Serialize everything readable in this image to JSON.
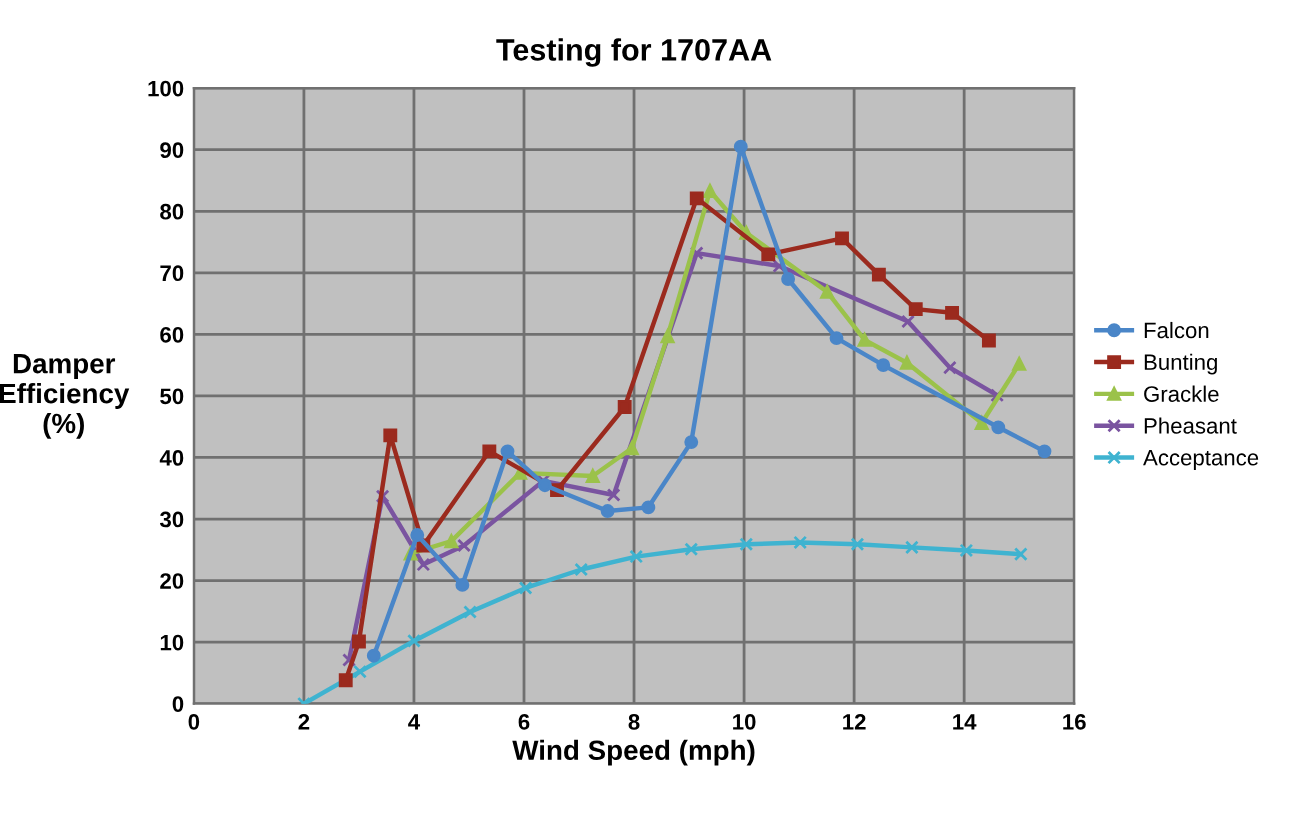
{
  "chart_data": {
    "type": "line",
    "title": "Testing for 1707AA",
    "xlabel": "Wind Speed (mph)",
    "ylabel": "Damper\nEfficiency\n(%)",
    "xlim": [
      0,
      16
    ],
    "xticks": [
      0,
      2,
      4,
      6,
      8,
      10,
      12,
      14,
      16
    ],
    "ylim": [
      0,
      100
    ],
    "yticks": [
      0,
      10,
      20,
      30,
      40,
      50,
      60,
      70,
      80,
      90,
      100
    ],
    "grid": true,
    "legend": "right",
    "series": [
      {
        "name": "Falcon",
        "color": "#4a86c8",
        "marker": "circle",
        "x": [
          3.27,
          4.06,
          4.88,
          5.7,
          6.38,
          7.52,
          8.26,
          9.04,
          9.94,
          10.8,
          11.68,
          12.53,
          14.62,
          15.46
        ],
        "values": [
          7.8,
          27.4,
          19.3,
          41,
          35.5,
          31.3,
          31.9,
          42.5,
          90.5,
          69,
          59.4,
          55,
          44.9,
          41
        ]
      },
      {
        "name": "Bunting",
        "color": "#9b2a1e",
        "marker": "square",
        "x": [
          2.76,
          3.0,
          3.57,
          4.17,
          5.37,
          6.6,
          7.83,
          9.14,
          10.44,
          11.78,
          12.45,
          13.12,
          13.78,
          14.45
        ],
        "values": [
          3.8,
          10.1,
          43.6,
          25.7,
          41,
          34.7,
          48.2,
          82.1,
          73,
          75.6,
          69.7,
          64.1,
          63.5,
          59
        ]
      },
      {
        "name": "Grackle",
        "color": "#9bc24a",
        "marker": "triangle",
        "x": [
          3.94,
          4.68,
          5.93,
          7.25,
          7.96,
          8.61,
          9.38,
          10.04,
          11.51,
          12.19,
          12.96,
          14.32,
          15.0
        ],
        "values": [
          24.4,
          26.4,
          37.5,
          37,
          41.5,
          59.7,
          83.3,
          76.5,
          66.9,
          59.1,
          55.4,
          45.6,
          55.2
        ]
      },
      {
        "name": "Pheasant",
        "color": "#7a54a0",
        "marker": "cross",
        "x": [
          2.82,
          3.43,
          4.17,
          4.91,
          6.35,
          7.63,
          9.14,
          10.64,
          12.98,
          13.74,
          14.6
        ],
        "values": [
          7.1,
          33.7,
          22.6,
          25.7,
          36.2,
          33.9,
          73.2,
          71.1,
          62.1,
          54.6,
          50.1
        ]
      },
      {
        "name": "Acceptance",
        "color": "#3fb3d0",
        "marker": "cross",
        "x": [
          2.0,
          3.02,
          4.0,
          5.02,
          6.03,
          7.04,
          8.04,
          9.04,
          10.04,
          11.02,
          12.06,
          13.05,
          14.04,
          15.03
        ],
        "values": [
          0,
          5.2,
          10.2,
          14.9,
          18.8,
          21.8,
          23.9,
          25.1,
          25.9,
          26.2,
          25.9,
          25.4,
          24.9,
          24.3
        ]
      }
    ]
  }
}
